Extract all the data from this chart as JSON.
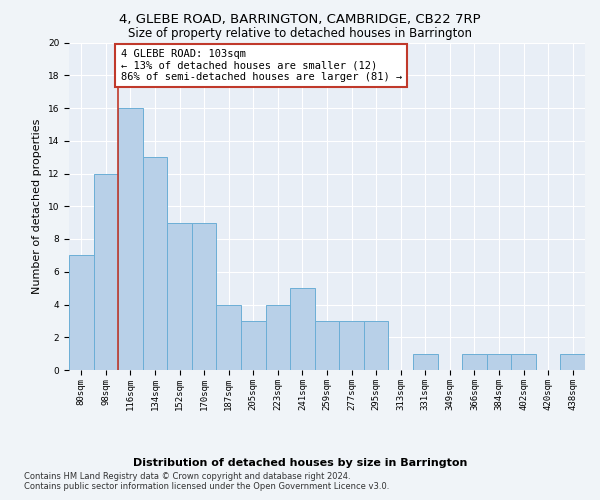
{
  "title_line1": "4, GLEBE ROAD, BARRINGTON, CAMBRIDGE, CB22 7RP",
  "title_line2": "Size of property relative to detached houses in Barrington",
  "xlabel": "Distribution of detached houses by size in Barrington",
  "ylabel": "Number of detached properties",
  "bar_labels": [
    "80sqm",
    "98sqm",
    "116sqm",
    "134sqm",
    "152sqm",
    "170sqm",
    "187sqm",
    "205sqm",
    "223sqm",
    "241sqm",
    "259sqm",
    "277sqm",
    "295sqm",
    "313sqm",
    "331sqm",
    "349sqm",
    "366sqm",
    "384sqm",
    "402sqm",
    "420sqm",
    "438sqm"
  ],
  "bar_values": [
    7,
    12,
    16,
    13,
    9,
    9,
    4,
    3,
    4,
    5,
    3,
    3,
    3,
    0,
    1,
    0,
    1,
    1,
    1,
    0,
    1
  ],
  "bar_color": "#b8d0e8",
  "bar_edge_color": "#6baed6",
  "vline_color": "#c0392b",
  "annotation_text": "4 GLEBE ROAD: 103sqm\n← 13% of detached houses are smaller (12)\n86% of semi-detached houses are larger (81) →",
  "annotation_box_color": "#ffffff",
  "annotation_box_edge_color": "#c0392b",
  "ylim": [
    0,
    20
  ],
  "yticks": [
    0,
    2,
    4,
    6,
    8,
    10,
    12,
    14,
    16,
    18,
    20
  ],
  "background_color": "#e8eef6",
  "grid_color": "#ffffff",
  "footer_line1": "Contains HM Land Registry data © Crown copyright and database right 2024.",
  "footer_line2": "Contains public sector information licensed under the Open Government Licence v3.0.",
  "title_fontsize": 9.5,
  "subtitle_fontsize": 8.5,
  "axis_label_fontsize": 8,
  "tick_fontsize": 6.5,
  "annotation_fontsize": 7.5,
  "footer_fontsize": 6.0
}
